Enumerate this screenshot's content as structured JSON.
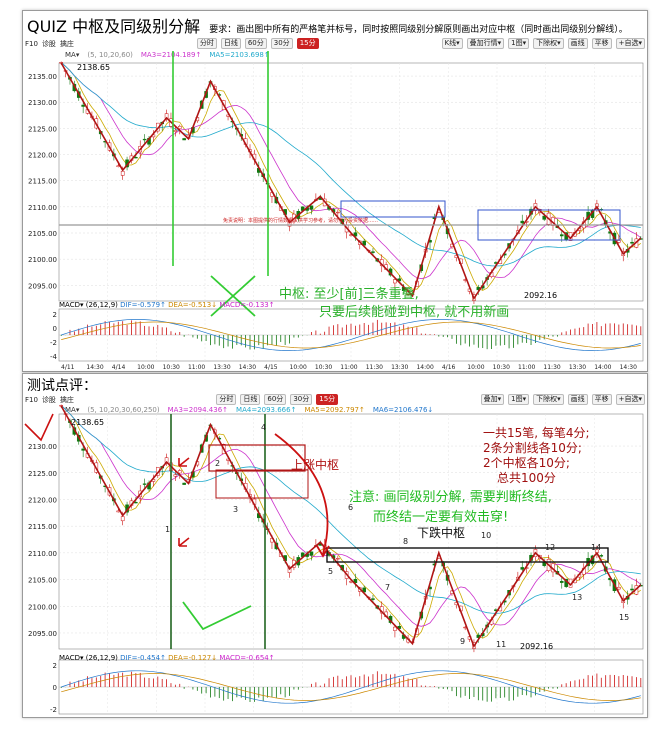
{
  "top": {
    "quiz": "QUIZ",
    "title": "中枢及同级别分解",
    "requirement": "要求：画出图中所有的严格笔并标号，同时按照同级别分解原则画出对应中枢（同时画出同级别分解线）。",
    "toolbar": {
      "left": [
        "F10",
        "诊股",
        "擒庄"
      ],
      "periods": [
        "分时",
        "日线",
        "60分",
        "30分",
        "15分"
      ],
      "active_period": "15分",
      "right": [
        "K线▾",
        "叠加行情▾",
        "1图▾",
        "下除权▾",
        "画线",
        "平移",
        "+自选▾"
      ]
    },
    "ma_labels": [
      "MA▾",
      "(5, 10,20,60)",
      "MA3=2104.189↑",
      "MA5=2103.698↑"
    ],
    "price_ticks": [
      "2135.00",
      "2130.00",
      "2125.00",
      "2120.00",
      "2115.00",
      "2110.00",
      "2105.00",
      "2100.00",
      "2095.00"
    ],
    "high_label": "2138.65",
    "low_label": "2092.16",
    "annotation_line1": "中枢: 至少[前]三条重叠,",
    "annotation_line2": "只要后续能碰到中枢, 就不用新画",
    "macd_label": "MACD▾",
    "macd_params": "(26,12,9)",
    "macd_dif": "DIF=-0.579↑",
    "macd_dea": "DEA=-0.513↓",
    "macd_val": "MACD=-0.133↑",
    "macd_ticks": [
      "2",
      "0",
      "-2",
      "-4"
    ],
    "time_ticks": [
      "4/11",
      "14:30",
      "4/14",
      "10:00",
      "10:30",
      "11:00",
      "13:30",
      "14:30",
      "4/15",
      "10:00",
      "10:30",
      "11:00",
      "11:30",
      "13:30",
      "14:00",
      "4/16",
      "10:00",
      "10:30",
      "11:00",
      "11:30",
      "13:30",
      "14:00",
      "14:30"
    ],
    "banner": "免责说明：本图提供的行情数据仅供学习参考，请勿作为投资依据……"
  },
  "bottom": {
    "title": "测试点评：",
    "toolbar": {
      "left": [
        "F10",
        "诊股",
        "擒庄"
      ],
      "periods": [
        "分时",
        "日线",
        "60分",
        "30分",
        "15分"
      ],
      "active_period": "15分",
      "right": [
        "叠加▾",
        "1图▾",
        "下除权▾",
        "画线",
        "平移",
        "+自选▾"
      ]
    },
    "ma_labels": [
      "MA▾",
      "(5, 10,20,30,60,250)",
      "MA3=2094.436↑",
      "MA4=2093.666↑",
      "MA5=2092.797↑",
      "MA6=2106.476↓"
    ],
    "price_ticks": [
      "2130.00",
      "2125.00",
      "2120.00",
      "2115.00",
      "2110.00",
      "2105.00",
      "2100.00",
      "2095.00"
    ],
    "high_label": "2138.65",
    "low_label": "2092.16",
    "up_center": "上涨中枢",
    "down_center": "下跌中枢",
    "notice_line1": "注意: 画同级别分解, 需要判断终结,",
    "notice_line2": "而终结一定要有效击穿!",
    "score_line1": "一共15笔, 每笔4分;",
    "score_line2": "2条分割线各10分;",
    "score_line3": "2个中枢各10分;",
    "score_line4": "总共100分",
    "stroke_numbers": [
      "1",
      "2",
      "3",
      "4",
      "5",
      "6",
      "7",
      "8",
      "9",
      "10",
      "11",
      "12",
      "13",
      "14",
      "15"
    ],
    "macd_label": "MACD▾",
    "macd_params": "(26,12,9)",
    "macd_dif": "DIF=-0.454↑",
    "macd_dea": "DEA=-0.127↓",
    "macd_val": "MACD=-0.654↑",
    "macd_ticks": [
      "2",
      "0",
      "-2"
    ]
  },
  "colors": {
    "up": "#cc1111",
    "down": "#117711",
    "stroke": "#b01515",
    "divider": "#22aa22",
    "zhongshu": "#3355cc",
    "ma5": "#ccaa00",
    "ma10": "#cc33cc",
    "ma20": "#22aacc"
  }
}
